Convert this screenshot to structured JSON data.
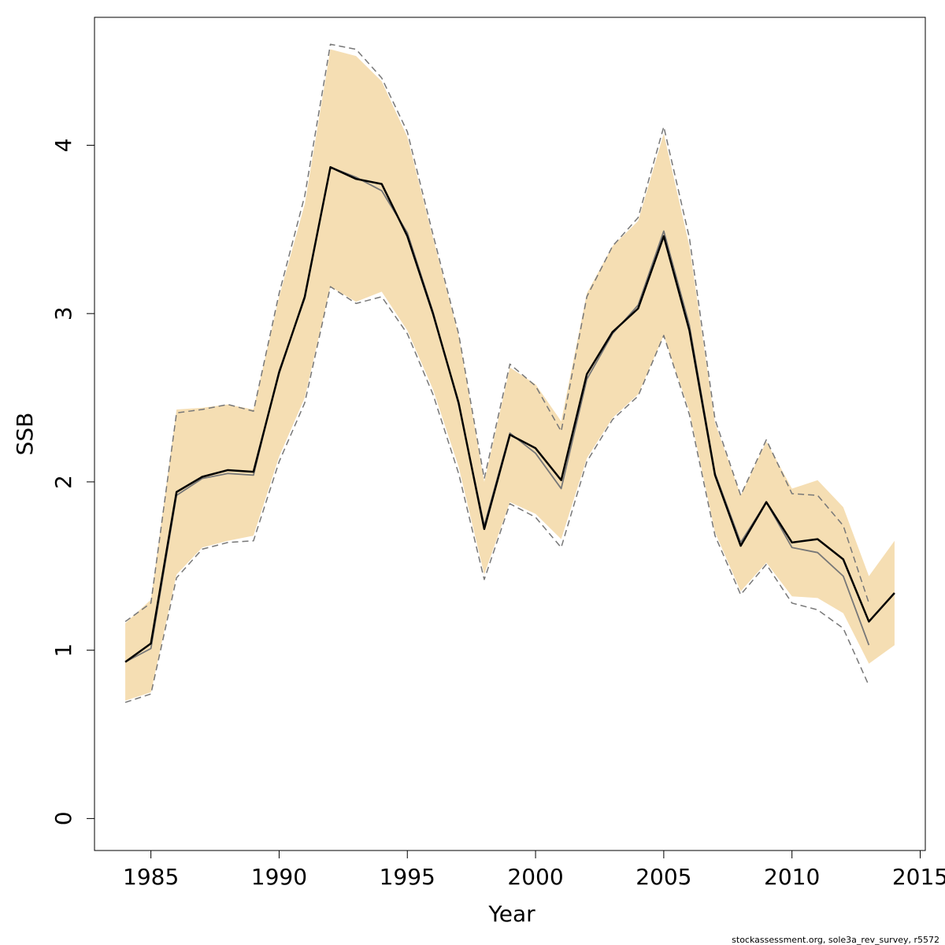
{
  "chart_data": {
    "type": "line",
    "xlabel": "Year",
    "ylabel": "SSB",
    "footer": "stockassessment.org, sole3a_rev_survey, r5572",
    "x": [
      1984,
      1985,
      1986,
      1987,
      1988,
      1989,
      1990,
      1991,
      1992,
      1993,
      1994,
      1995,
      1996,
      1997,
      1998,
      1999,
      2000,
      2001,
      2002,
      2003,
      2004,
      2005,
      2006,
      2007,
      2008,
      2009,
      2010,
      2011,
      2012,
      2013,
      2014
    ],
    "xlim": [
      1982.8,
      2015.2
    ],
    "xticks": [
      1985,
      1990,
      1995,
      2000,
      2005,
      2010,
      2015
    ],
    "ylim": [
      -0.19,
      4.76
    ],
    "yticks": [
      0,
      1,
      2,
      3,
      4
    ],
    "band": {
      "color": "#f5deb3",
      "upper": [
        1.16,
        1.3,
        2.43,
        2.44,
        2.46,
        2.43,
        3.1,
        3.65,
        4.57,
        4.53,
        4.38,
        4.05,
        3.45,
        2.87,
        2.0,
        2.68,
        2.58,
        2.36,
        3.12,
        3.4,
        3.55,
        4.07,
        3.4,
        2.35,
        1.92,
        2.24,
        1.96,
        2.01,
        1.85,
        1.44,
        1.65
      ],
      "lower": [
        0.7,
        0.75,
        1.45,
        1.61,
        1.65,
        1.68,
        2.15,
        2.5,
        3.16,
        3.07,
        3.13,
        2.9,
        2.55,
        2.09,
        1.45,
        1.88,
        1.81,
        1.66,
        2.14,
        2.38,
        2.52,
        2.87,
        2.42,
        1.7,
        1.35,
        1.52,
        1.32,
        1.31,
        1.22,
        0.92,
        1.03
      ]
    },
    "series": [
      {
        "color": "#777777",
        "width": 1.5,
        "dash": true,
        "values": [
          1.17,
          1.28,
          2.41,
          2.43,
          2.46,
          2.42,
          3.12,
          3.7,
          4.6,
          4.57,
          4.4,
          4.08,
          3.47,
          2.88,
          2.02,
          2.7,
          2.57,
          2.3,
          3.1,
          3.4,
          3.57,
          4.11,
          3.45,
          2.37,
          1.92,
          2.25,
          1.93,
          1.92,
          1.74,
          1.28,
          null
        ]
      },
      {
        "color": "#777777",
        "width": 1.5,
        "dash": true,
        "values": [
          0.69,
          0.74,
          1.43,
          1.6,
          1.64,
          1.65,
          2.12,
          2.47,
          3.16,
          3.06,
          3.1,
          2.88,
          2.52,
          2.05,
          1.42,
          1.87,
          1.79,
          1.61,
          2.12,
          2.37,
          2.51,
          2.87,
          2.4,
          1.68,
          1.33,
          1.51,
          1.28,
          1.24,
          1.13,
          0.79,
          null
        ]
      },
      {
        "color": "#777777",
        "width": 1.8,
        "dash": false,
        "values": [
          0.93,
          1.01,
          1.92,
          2.02,
          2.05,
          2.04,
          2.66,
          3.09,
          3.87,
          3.81,
          3.73,
          3.48,
          3.01,
          2.46,
          1.74,
          2.29,
          2.17,
          1.96,
          2.61,
          2.88,
          3.05,
          3.49,
          2.93,
          2.05,
          1.64,
          1.88,
          1.61,
          1.58,
          1.44,
          1.03,
          null
        ]
      },
      {
        "color": "#000000",
        "width": 2.5,
        "dash": false,
        "values": [
          0.93,
          1.04,
          1.94,
          2.03,
          2.07,
          2.06,
          2.65,
          3.1,
          3.87,
          3.8,
          3.77,
          3.46,
          3.0,
          2.47,
          1.72,
          2.28,
          2.2,
          2.01,
          2.64,
          2.89,
          3.03,
          3.46,
          2.9,
          2.04,
          1.62,
          1.88,
          1.64,
          1.66,
          1.54,
          1.17,
          1.34
        ]
      }
    ]
  }
}
